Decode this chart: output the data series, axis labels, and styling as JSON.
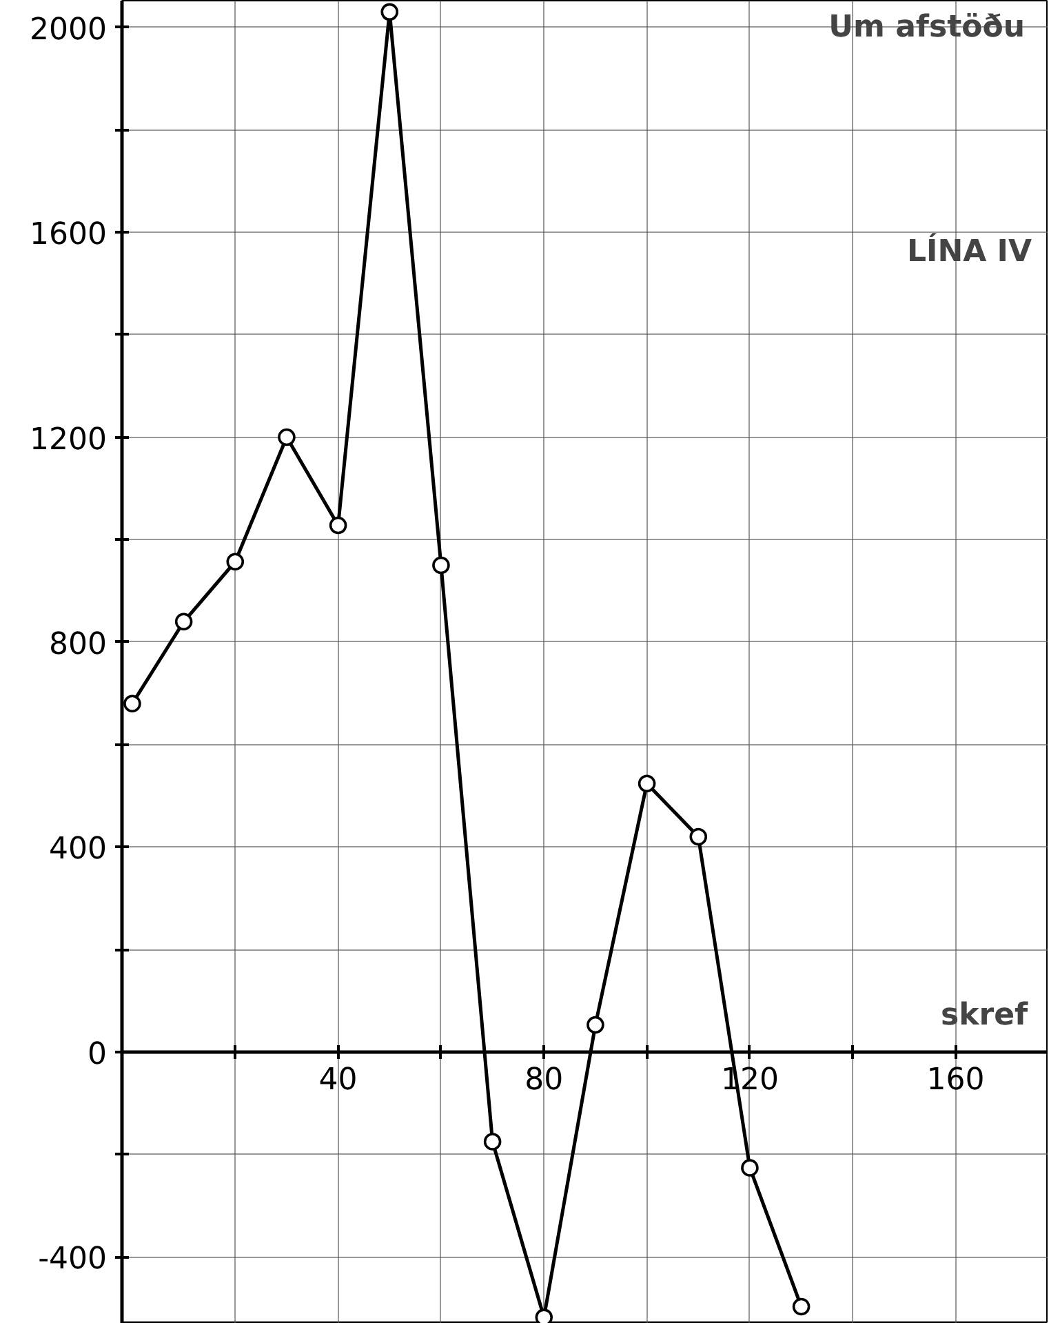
{
  "chart_data": {
    "type": "line",
    "xlabel": "skref",
    "annotations": [
      "Um afstöðu",
      "LÍNA IV"
    ],
    "x": [
      0,
      10,
      20,
      30,
      40,
      50,
      60,
      70,
      80,
      90,
      100,
      110,
      120,
      130
    ],
    "series": [
      {
        "color": "#000000",
        "values": [
          680,
          840,
          957,
          1200,
          1028,
          2030,
          950,
          -175,
          -518,
          53,
          524,
          420,
          -226,
          -497
        ]
      }
    ],
    "xlim": [
      -2,
      178
    ],
    "ylim": [
      -530,
      2052
    ],
    "xticks": [
      {
        "value": 20,
        "label": null
      },
      40,
      {
        "value": 60,
        "label": null
      },
      80,
      {
        "value": 100,
        "label": null
      },
      120,
      {
        "value": 140,
        "label": null
      },
      160
    ],
    "yticks": [
      -400,
      {
        "value": -200,
        "label": null
      },
      0,
      {
        "value": 200,
        "label": null
      },
      400,
      {
        "value": 600,
        "label": null
      },
      800,
      {
        "value": 1000,
        "label": null
      },
      1200,
      {
        "value": 1400,
        "label": null
      },
      1600,
      {
        "value": 1800,
        "label": null
      },
      2000
    ],
    "grid": true,
    "marker": "circle",
    "line_style": "solid"
  }
}
